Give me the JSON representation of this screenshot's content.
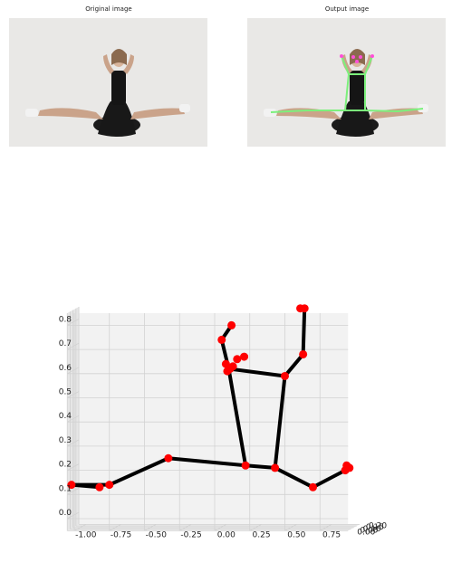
{
  "panels": {
    "left_title": "Original image",
    "right_title": "Output image"
  },
  "colors": {
    "photo_bg": "#e9e8e6",
    "skeleton_overlay": "#7cf07c",
    "landmark_overlay": "#ff4fd8",
    "bone": "#000000",
    "joint": "#ff0000"
  },
  "chart_data": {
    "type": "scatter",
    "projection": "3d",
    "title": "",
    "xlabel": "",
    "ylabel": "",
    "zlabel": "",
    "xlim": [
      -1.05,
      0.95
    ],
    "ylim": [
      0.0,
      0.2
    ],
    "zlim": [
      -0.05,
      0.85
    ],
    "x_ticks": [
      "-1.00",
      "-0.75",
      "-0.50",
      "-0.25",
      "0.00",
      "0.25",
      "0.50",
      "0.75"
    ],
    "y_ticks": [
      "0.00",
      "0.05",
      "0.10",
      "0.15",
      "0.20"
    ],
    "z_ticks": [
      "0.0",
      "0.1",
      "0.2",
      "0.3",
      "0.4",
      "0.5",
      "0.6",
      "0.7",
      "0.8"
    ],
    "grid": true,
    "points": [
      {
        "name": "nose",
        "x": 0.13,
        "z": 0.63
      },
      {
        "name": "left_eye",
        "x": 0.08,
        "z": 0.64
      },
      {
        "name": "right_eye",
        "x": 0.16,
        "z": 0.66
      },
      {
        "name": "left_ear",
        "x": 0.09,
        "z": 0.61
      },
      {
        "name": "right_ear",
        "x": 0.21,
        "z": 0.67
      },
      {
        "name": "mouth",
        "x": 0.11,
        "z": 0.62
      },
      {
        "name": "left_shoulder",
        "x": 0.1,
        "z": 0.62
      },
      {
        "name": "right_shoulder",
        "x": 0.5,
        "z": 0.59
      },
      {
        "name": "left_elbow",
        "x": 0.05,
        "z": 0.74
      },
      {
        "name": "right_elbow",
        "x": 0.63,
        "z": 0.68
      },
      {
        "name": "left_wrist",
        "x": 0.12,
        "z": 0.8
      },
      {
        "name": "right_wrist",
        "x": 0.64,
        "z": 0.87
      },
      {
        "name": "right_index",
        "x": 0.61,
        "z": 0.87
      },
      {
        "name": "left_hip",
        "x": 0.22,
        "z": 0.22
      },
      {
        "name": "right_hip",
        "x": 0.43,
        "z": 0.21
      },
      {
        "name": "left_knee",
        "x": -0.33,
        "z": 0.25
      },
      {
        "name": "right_knee",
        "x": 0.7,
        "z": 0.13
      },
      {
        "name": "left_ankle",
        "x": -0.75,
        "z": 0.14
      },
      {
        "name": "right_ankle",
        "x": 0.93,
        "z": 0.2
      },
      {
        "name": "left_heel",
        "x": -0.82,
        "z": 0.13
      },
      {
        "name": "left_foot",
        "x": -1.02,
        "z": 0.14
      },
      {
        "name": "right_heel",
        "x": 0.96,
        "z": 0.21
      },
      {
        "name": "right_foot",
        "x": 0.94,
        "z": 0.22
      }
    ],
    "bones": [
      [
        "left_wrist",
        "left_elbow"
      ],
      [
        "left_elbow",
        "left_shoulder"
      ],
      [
        "left_shoulder",
        "left_hip"
      ],
      [
        "left_shoulder",
        "right_shoulder"
      ],
      [
        "right_shoulder",
        "right_elbow"
      ],
      [
        "right_elbow",
        "right_wrist"
      ],
      [
        "right_shoulder",
        "right_hip"
      ],
      [
        "left_hip",
        "right_hip"
      ],
      [
        "left_hip",
        "left_knee"
      ],
      [
        "left_knee",
        "left_ankle"
      ],
      [
        "left_ankle",
        "left_foot"
      ],
      [
        "left_heel",
        "left_foot"
      ],
      [
        "right_hip",
        "right_knee"
      ],
      [
        "right_knee",
        "right_ankle"
      ],
      [
        "right_ankle",
        "right_foot"
      ],
      [
        "right_heel",
        "right_foot"
      ]
    ]
  }
}
